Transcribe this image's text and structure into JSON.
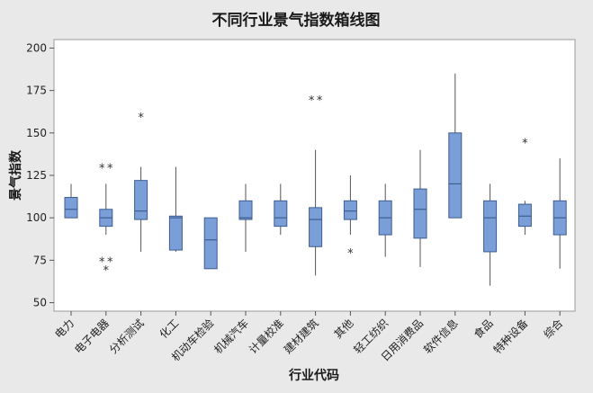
{
  "chart_data": {
    "type": "boxplot",
    "title": "不同行业景气指数箱线图",
    "xlabel": "行业代码",
    "ylabel": "景气指数",
    "ylim": [
      45,
      205
    ],
    "yticks": [
      50,
      75,
      100,
      125,
      150,
      175,
      200
    ],
    "grid": false,
    "box_color": "#7a9fd8",
    "box_stroke": "#3f5d8f",
    "categories": [
      "电力",
      "电子电器",
      "分析测试",
      "化工",
      "机动车检验",
      "机械汽车",
      "计量校准",
      "建材建筑",
      "其他",
      "轻工纺织",
      "日用消费品",
      "软件信息",
      "食品",
      "特种设备",
      "综合"
    ],
    "boxes": [
      {
        "min": 100,
        "q1": 100,
        "median": 105,
        "q3": 112,
        "max": 120,
        "outliers": []
      },
      {
        "min": 90,
        "q1": 95,
        "median": 100,
        "q3": 105,
        "max": 120,
        "outliers": [
          130,
          130,
          75,
          75,
          70
        ]
      },
      {
        "min": 80,
        "q1": 99,
        "median": 104,
        "q3": 122,
        "max": 130,
        "outliers": [
          160
        ]
      },
      {
        "min": 80,
        "q1": 81,
        "median": 100,
        "q3": 101,
        "max": 130,
        "outliers": []
      },
      {
        "min": 70,
        "q1": 70,
        "median": 87,
        "q3": 100,
        "max": 100,
        "outliers": []
      },
      {
        "min": 80,
        "q1": 99,
        "median": 100,
        "q3": 110,
        "max": 120,
        "outliers": []
      },
      {
        "min": 90,
        "q1": 95,
        "median": 100,
        "q3": 110,
        "max": 120,
        "outliers": []
      },
      {
        "min": 66,
        "q1": 83,
        "median": 99,
        "q3": 106,
        "max": 140,
        "outliers": [
          170,
          170
        ]
      },
      {
        "min": 90,
        "q1": 99,
        "median": 104,
        "q3": 110,
        "max": 125,
        "outliers": [
          80
        ]
      },
      {
        "min": 77,
        "q1": 90,
        "median": 100,
        "q3": 110,
        "max": 120,
        "outliers": []
      },
      {
        "min": 71,
        "q1": 88,
        "median": 105,
        "q3": 117,
        "max": 140,
        "outliers": []
      },
      {
        "min": 100,
        "q1": 100,
        "median": 120,
        "q3": 150,
        "max": 185,
        "outliers": []
      },
      {
        "min": 60,
        "q1": 80,
        "median": 100,
        "q3": 110,
        "max": 120,
        "outliers": []
      },
      {
        "min": 90,
        "q1": 95,
        "median": 101,
        "q3": 108,
        "max": 110,
        "outliers": [
          145
        ]
      },
      {
        "min": 70,
        "q1": 90,
        "median": 100,
        "q3": 110,
        "max": 135,
        "outliers": []
      }
    ]
  }
}
